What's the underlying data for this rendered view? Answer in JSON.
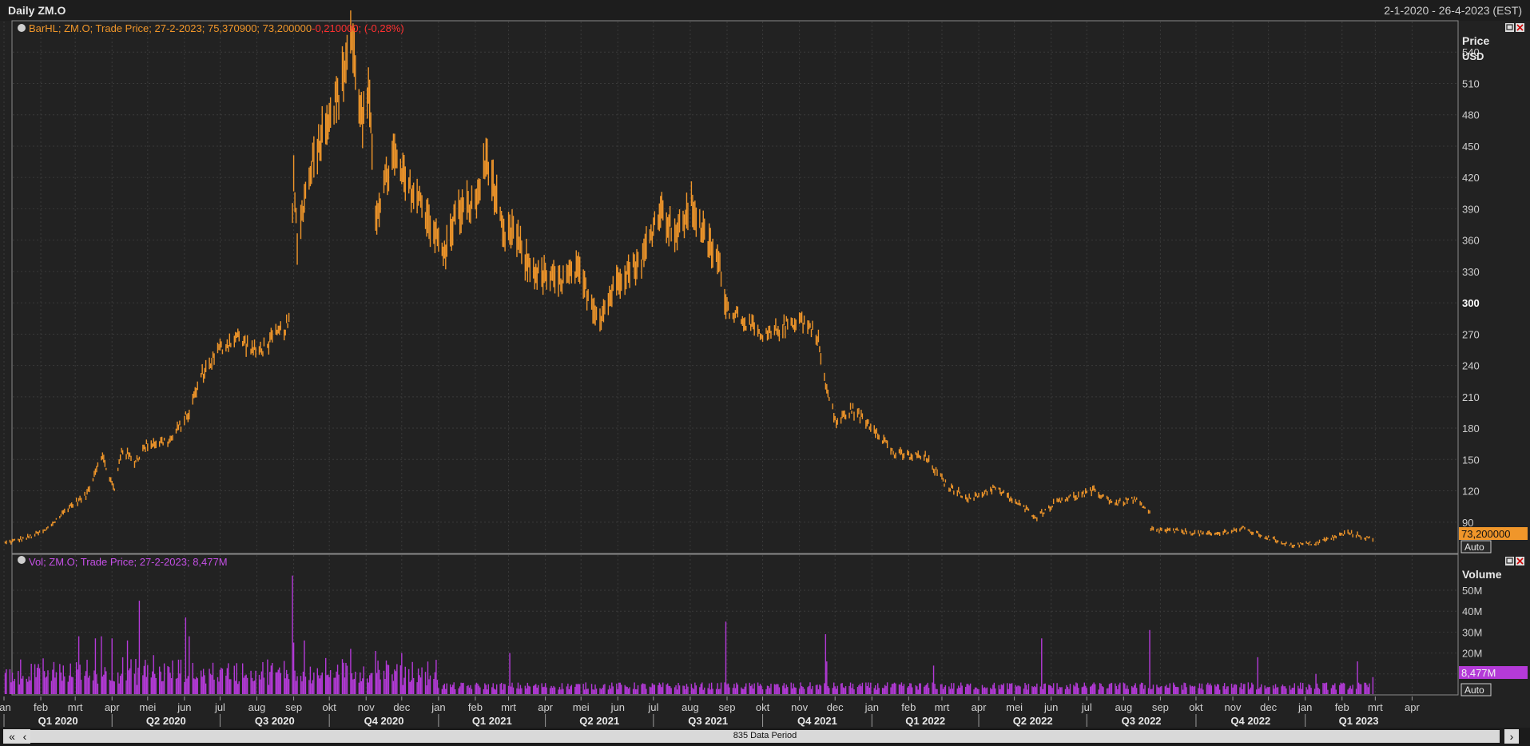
{
  "window": {
    "title": "Daily ZM.O",
    "date_range": "2-1-2020 - 26-4-2023 (EST)"
  },
  "colors": {
    "price": "#f0962a",
    "volume": "#b43ad8",
    "pct_change": "#ff3030",
    "background": "#222222",
    "grid": "#3a3a3a"
  },
  "price_panel": {
    "legend_prefix": "BarHL; ZM.O; Trade Price; 27-2-2023; 75,370900; 73,200000",
    "legend_change": "-0,210000; (-0,28%)",
    "axis_title": "Price",
    "axis_unit": "USD",
    "last_value_label": "73,200000",
    "auto_label": "Auto",
    "icons": [
      "restore-icon",
      "close-icon"
    ]
  },
  "volume_panel": {
    "legend": "Vol; ZM.O; Trade Price; 27-2-2023; 8,477M",
    "axis_title": "Volume",
    "last_value_label": "8,477M",
    "auto_label": "Auto",
    "icons": [
      "restore-icon",
      "close-icon"
    ]
  },
  "time_axis": {
    "months": [
      "jan",
      "feb",
      "mrt",
      "apr",
      "mei",
      "jun",
      "jul",
      "aug",
      "sep",
      "okt",
      "nov",
      "dec",
      "jan",
      "feb",
      "mrt",
      "apr",
      "mei",
      "jun",
      "jul",
      "aug",
      "sep",
      "okt",
      "nov",
      "dec",
      "jan",
      "feb",
      "mrt",
      "apr",
      "mei",
      "jun",
      "jul",
      "aug",
      "sep",
      "okt",
      "nov",
      "dec",
      "jan",
      "feb",
      "mrt",
      "apr"
    ],
    "quarters": [
      "Q1 2020",
      "Q2 2020",
      "Q3 2020",
      "Q4 2020",
      "Q1 2021",
      "Q2 2021",
      "Q3 2021",
      "Q4 2021",
      "Q1 2022",
      "Q2 2022",
      "Q3 2022",
      "Q4 2022",
      "Q1 2023"
    ]
  },
  "scrollbar": {
    "label": "835 Data Period",
    "left_double_icon": "double-chevron-left-icon",
    "left_icon": "chevron-left-icon",
    "right_icon": "chevron-right-icon"
  },
  "chart_data": [
    {
      "type": "bar",
      "subtype": "ohlc-high-low",
      "series_name": "ZM.O Trade Price",
      "ylabel": "Price USD",
      "ylim": [
        60,
        570
      ],
      "yticks": [
        90,
        120,
        150,
        180,
        210,
        240,
        270,
        300,
        330,
        360,
        390,
        420,
        450,
        480,
        510,
        540
      ],
      "x_range": [
        "2020-01-02",
        "2023-02-27"
      ],
      "x_end": "2023-04-26",
      "grid": true,
      "anchors": [
        [
          "2020-01-02",
          70
        ],
        [
          "2020-01-20",
          75
        ],
        [
          "2020-02-05",
          82
        ],
        [
          "2020-02-25",
          105
        ],
        [
          "2020-03-10",
          115
        ],
        [
          "2020-03-23",
          155
        ],
        [
          "2020-04-03",
          120
        ],
        [
          "2020-04-09",
          160
        ],
        [
          "2020-04-20",
          148
        ],
        [
          "2020-05-01",
          165
        ],
        [
          "2020-05-20",
          168
        ],
        [
          "2020-06-05",
          195
        ],
        [
          "2020-06-15",
          230
        ],
        [
          "2020-06-30",
          255
        ],
        [
          "2020-07-15",
          268
        ],
        [
          "2020-08-01",
          252
        ],
        [
          "2020-08-14",
          265
        ],
        [
          "2020-08-28",
          280
        ],
        [
          "2020-09-01",
          418
        ],
        [
          "2020-09-04",
          360
        ],
        [
          "2020-09-15",
          430
        ],
        [
          "2020-09-30",
          480
        ],
        [
          "2020-10-10",
          500
        ],
        [
          "2020-10-19",
          560
        ],
        [
          "2020-10-29",
          470
        ],
        [
          "2020-11-03",
          500
        ],
        [
          "2020-11-09",
          385
        ],
        [
          "2020-11-24",
          440
        ],
        [
          "2020-12-04",
          415
        ],
        [
          "2020-12-18",
          395
        ],
        [
          "2021-01-06",
          345
        ],
        [
          "2021-01-15",
          385
        ],
        [
          "2021-02-01",
          395
        ],
        [
          "2021-02-11",
          440
        ],
        [
          "2021-02-25",
          360
        ],
        [
          "2021-03-05",
          370
        ],
        [
          "2021-03-15",
          340
        ],
        [
          "2021-03-25",
          328
        ],
        [
          "2021-04-12",
          320
        ],
        [
          "2021-04-28",
          330
        ],
        [
          "2021-05-10",
          300
        ],
        [
          "2021-05-17",
          285
        ],
        [
          "2021-06-02",
          325
        ],
        [
          "2021-06-21",
          340
        ],
        [
          "2021-07-06",
          390
        ],
        [
          "2021-07-21",
          365
        ],
        [
          "2021-08-02",
          395
        ],
        [
          "2021-08-12",
          365
        ],
        [
          "2021-08-25",
          338
        ],
        [
          "2021-09-01",
          296
        ],
        [
          "2021-09-15",
          285
        ],
        [
          "2021-10-01",
          265
        ],
        [
          "2021-10-15",
          275
        ],
        [
          "2021-11-01",
          285
        ],
        [
          "2021-11-16",
          270
        ],
        [
          "2021-11-23",
          220
        ],
        [
          "2021-12-02",
          185
        ],
        [
          "2021-12-15",
          198
        ],
        [
          "2022-01-05",
          178
        ],
        [
          "2022-01-20",
          155
        ],
        [
          "2022-02-15",
          152
        ],
        [
          "2022-03-05",
          125
        ],
        [
          "2022-03-25",
          112
        ],
        [
          "2022-04-14",
          123
        ],
        [
          "2022-05-01",
          110
        ],
        [
          "2022-05-20",
          95
        ],
        [
          "2022-06-08",
          112
        ],
        [
          "2022-06-24",
          115
        ],
        [
          "2022-07-07",
          120
        ],
        [
          "2022-07-25",
          108
        ],
        [
          "2022-08-10",
          112
        ],
        [
          "2022-08-23",
          98
        ],
        [
          "2022-08-24",
          83
        ],
        [
          "2022-09-20",
          81
        ],
        [
          "2022-10-15",
          78
        ],
        [
          "2022-11-09",
          84
        ],
        [
          "2022-11-28",
          76
        ],
        [
          "2022-12-20",
          68
        ],
        [
          "2023-01-10",
          70
        ],
        [
          "2023-02-06",
          80
        ],
        [
          "2023-02-27",
          73.2
        ]
      ],
      "last": {
        "date": "2023-02-27",
        "high": 75.3709,
        "close": 73.2,
        "change": -0.21,
        "change_pct": -0.28
      }
    },
    {
      "type": "bar",
      "series_name": "ZM.O Volume",
      "ylabel": "Volume",
      "ylim": [
        0,
        60
      ],
      "yticks": [
        10,
        20,
        30,
        40,
        50
      ],
      "ytick_labels": [
        "",
        "20M",
        "30M",
        "40M",
        "50M"
      ],
      "x_range": [
        "2020-01-02",
        "2023-02-27"
      ],
      "grid": true,
      "baseline_millions": 4,
      "spikes": [
        [
          "2020-02-26",
          15
        ],
        [
          "2020-03-04",
          28
        ],
        [
          "2020-03-18",
          27
        ],
        [
          "2020-03-23",
          28
        ],
        [
          "2020-04-01",
          27
        ],
        [
          "2020-04-14",
          26
        ],
        [
          "2020-04-24",
          45
        ],
        [
          "2020-05-06",
          19
        ],
        [
          "2020-06-02",
          37
        ],
        [
          "2020-06-05",
          28
        ],
        [
          "2020-07-01",
          12
        ],
        [
          "2020-08-31",
          57
        ],
        [
          "2020-09-01",
          25
        ],
        [
          "2020-09-10",
          26
        ],
        [
          "2020-10-19",
          22
        ],
        [
          "2020-11-09",
          21
        ],
        [
          "2020-12-01",
          20
        ],
        [
          "2021-03-02",
          20
        ],
        [
          "2021-08-31",
          35
        ],
        [
          "2021-11-23",
          29
        ],
        [
          "2021-11-24",
          16
        ],
        [
          "2022-02-22",
          14
        ],
        [
          "2022-05-24",
          27
        ],
        [
          "2022-08-23",
          31
        ],
        [
          "2022-11-22",
          18
        ],
        [
          "2023-01-10",
          10
        ],
        [
          "2023-02-14",
          16
        ],
        [
          "2023-02-27",
          8.477
        ]
      ],
      "last": {
        "date": "2023-02-27",
        "value_millions": 8.477
      }
    }
  ]
}
